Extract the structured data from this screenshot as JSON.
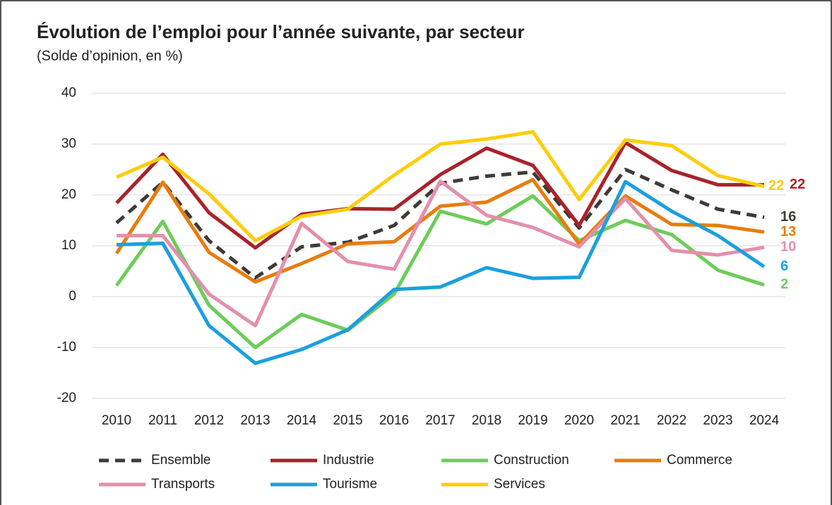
{
  "chart_data": {
    "type": "line",
    "title": "Évolution de l’emploi pour l’année suivante, par secteur",
    "subtitle": "(Solde d’opinion, en %)",
    "categories": [
      "2010",
      "2011",
      "2012",
      "2013",
      "2014",
      "2015",
      "2016",
      "2017",
      "2018",
      "2019",
      "2020",
      "2021",
      "2022",
      "2023",
      "2024"
    ],
    "ylim": [
      -20,
      40
    ],
    "yticks": [
      -20,
      -10,
      0,
      10,
      20,
      30,
      40
    ],
    "grid": true,
    "series": [
      {
        "name": "Ensemble",
        "color": "#403a36",
        "dashed": true,
        "values": [
          14.5,
          22.5,
          11,
          3.7,
          9.8,
          10.7,
          14,
          22.3,
          23.7,
          24.5,
          13.5,
          25,
          21,
          17.2,
          15.6
        ],
        "value_labels": [
          null,
          null,
          null,
          null,
          null,
          null,
          null,
          null,
          null,
          null,
          null,
          null,
          null,
          null,
          "16"
        ]
      },
      {
        "name": "Industrie",
        "color": "#a8232a",
        "values": [
          18.4,
          28,
          16.5,
          9.6,
          16.2,
          17.3,
          17.2,
          24,
          29.2,
          25.8,
          14,
          30.3,
          24.8,
          22,
          22
        ],
        "value_labels": [
          null,
          null,
          null,
          null,
          null,
          null,
          null,
          null,
          null,
          null,
          null,
          null,
          null,
          null,
          "22"
        ]
      },
      {
        "name": "Construction",
        "color": "#6ccd5a",
        "values": [
          2.2,
          14.8,
          -1.7,
          -10,
          -3.5,
          -6.6,
          0.5,
          16.8,
          14.3,
          19.8,
          11,
          15,
          12.2,
          5.2,
          2.3
        ],
        "value_labels": [
          null,
          null,
          null,
          null,
          null,
          null,
          null,
          null,
          null,
          null,
          null,
          null,
          null,
          null,
          "2"
        ]
      },
      {
        "name": "Commerce",
        "color": "#e87c0e",
        "values": [
          8.5,
          22.5,
          8.7,
          2.9,
          6.5,
          10.4,
          10.8,
          17.8,
          18.6,
          23,
          10.3,
          19.8,
          14.2,
          14,
          12.7
        ],
        "value_labels": [
          null,
          null,
          null,
          null,
          null,
          null,
          null,
          null,
          null,
          null,
          null,
          null,
          null,
          null,
          "13"
        ]
      },
      {
        "name": "Transports",
        "color": "#e38fae",
        "values": [
          12,
          12,
          0.5,
          -5.7,
          14.4,
          6.9,
          5.4,
          22.7,
          16,
          13.6,
          9.8,
          19.3,
          9.1,
          8.2,
          9.7
        ],
        "value_labels": [
          null,
          null,
          null,
          null,
          null,
          null,
          null,
          null,
          null,
          null,
          null,
          null,
          null,
          null,
          "10"
        ]
      },
      {
        "name": "Tourisme",
        "color": "#1ba0dc",
        "values": [
          10.2,
          10.5,
          -5.7,
          -13.1,
          -10.4,
          -6.5,
          1.4,
          1.9,
          5.7,
          3.6,
          3.8,
          22.6,
          16.8,
          12,
          5.9
        ],
        "value_labels": [
          null,
          null,
          null,
          null,
          null,
          null,
          null,
          null,
          null,
          null,
          null,
          null,
          null,
          null,
          "6"
        ]
      },
      {
        "name": "Services",
        "color": "#fccd0a",
        "values": [
          23.5,
          27.4,
          20.2,
          11,
          15.8,
          17.2,
          23.9,
          30,
          31,
          32.4,
          19.1,
          30.8,
          29.7,
          23.8,
          21.7
        ],
        "value_labels": [
          null,
          null,
          null,
          null,
          null,
          null,
          null,
          null,
          null,
          null,
          null,
          null,
          null,
          null,
          "22"
        ]
      }
    ]
  }
}
